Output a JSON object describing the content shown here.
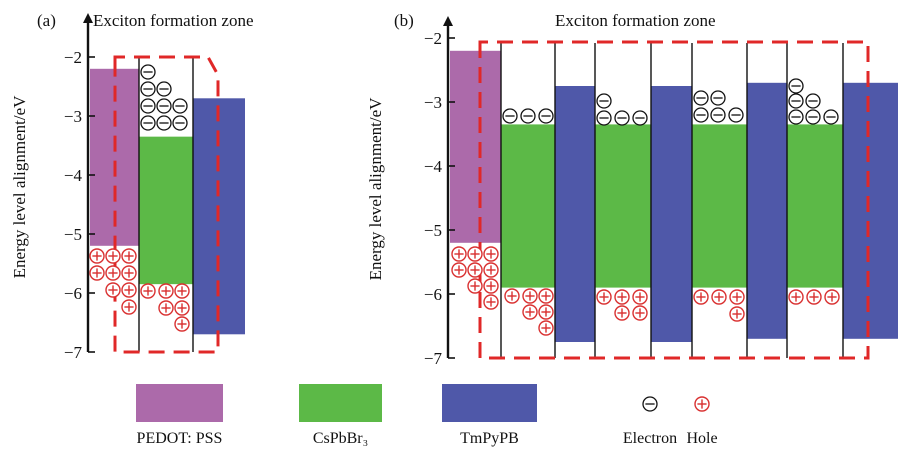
{
  "colors": {
    "pedot": "#ac6aaa",
    "cspbbr3": "#5cb947",
    "tmpypb": "#4f58a9",
    "zone_outline": "#e02828",
    "hole": "#d93030",
    "electron": "#111111"
  },
  "panels": [
    {
      "label": "(a)",
      "title": "Exciton formation zone",
      "ylabel": "Energy level alignment/eV",
      "yticks": [
        -2,
        -3,
        -4,
        -5,
        -6,
        -7
      ]
    },
    {
      "label": "(b)",
      "title": "Exciton formation zone",
      "ylabel": "Energy level alignment/eV",
      "yticks": [
        -2,
        -3,
        -4,
        -5,
        -6,
        -7
      ]
    }
  ],
  "legend": [
    {
      "label": "PEDOT: PSS",
      "type": "swatch",
      "color": "#ac6aaa",
      "icon": ""
    },
    {
      "label": "CsPbBr₃",
      "type": "swatch",
      "color": "#5cb947",
      "icon": ""
    },
    {
      "label": "TmPyPB",
      "type": "swatch",
      "color": "#4f58a9",
      "icon": ""
    },
    {
      "label": "Electron",
      "type": "symbol",
      "color": "#111111",
      "icon": "electron-icon"
    },
    {
      "label": "Hole",
      "type": "symbol",
      "color": "#d93030",
      "icon": "hole-icon"
    }
  ],
  "chart_data": [
    {
      "type": "energy-level-diagram",
      "panel": "(a)",
      "title": "Exciton formation zone",
      "ylabel": "Energy level alignment/eV",
      "ylim": [
        -7,
        -2
      ],
      "layers": [
        {
          "material": "PEDOT: PSS",
          "top": -2.2,
          "bottom": -5.2
        },
        {
          "material": "CsPbBr₃",
          "top": -3.35,
          "bottom": -5.85
        },
        {
          "material": "TmPyPB",
          "top": -2.7,
          "bottom": -6.7
        }
      ]
    },
    {
      "type": "energy-level-diagram",
      "panel": "(b)",
      "title": "Exciton formation zone",
      "ylabel": "Energy level alignment/eV",
      "ylim": [
        -7,
        -2
      ],
      "layers": [
        {
          "material": "PEDOT: PSS",
          "top": -2.2,
          "bottom": -5.2
        },
        {
          "material": "CsPbBr₃",
          "top": -3.35,
          "bottom": -5.9
        },
        {
          "material": "TmPyPB",
          "top": -2.75,
          "bottom": -6.75
        },
        {
          "material": "CsPbBr₃",
          "top": -3.35,
          "bottom": -5.9
        },
        {
          "material": "TmPyPB",
          "top": -2.75,
          "bottom": -6.75
        },
        {
          "material": "CsPbBr₃",
          "top": -3.35,
          "bottom": -5.9
        },
        {
          "material": "TmPyPB",
          "top": -2.7,
          "bottom": -6.7
        },
        {
          "material": "CsPbBr₃",
          "top": -3.35,
          "bottom": -5.9
        },
        {
          "material": "TmPyPB",
          "top": -2.7,
          "bottom": -6.7
        }
      ]
    }
  ]
}
